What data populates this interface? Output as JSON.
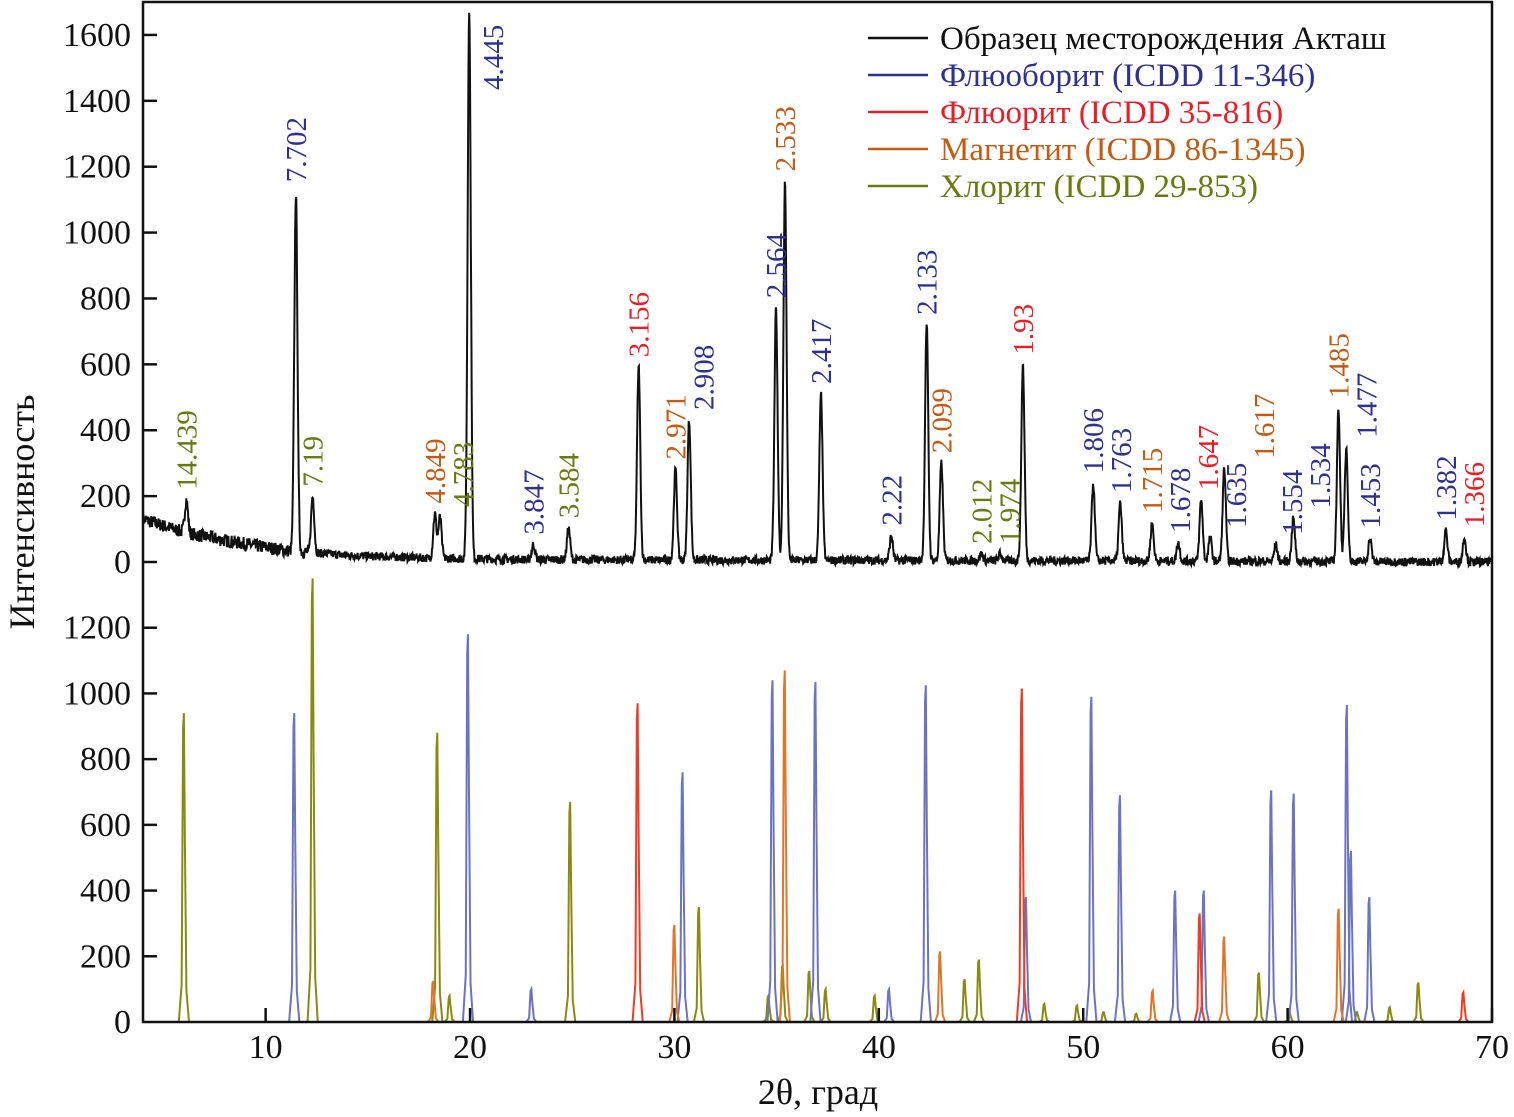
{
  "chart_data": {
    "type": "line",
    "xlabel": "2θ, град",
    "ylabel": "Интенсивность",
    "xlim": [
      4,
      70
    ],
    "xticks": [
      10,
      20,
      30,
      40,
      50,
      60,
      70
    ],
    "legend_position": "top-right",
    "legend": [
      {
        "name": "Образец месторождения Акташ",
        "color": "#111111",
        "text_color": "#111111"
      },
      {
        "name": "Флюоборит (ICDD 11-346)",
        "color": "#2e3192",
        "text_color": "#2e3192"
      },
      {
        "name": "Флюорит (ICDD 35-816)",
        "color": "#ed1c24",
        "text_color": "#ed1c24"
      },
      {
        "name": "Магнетит (ICDD 86-1345)",
        "color": "#c55a11",
        "text_color": "#c55a11"
      },
      {
        "name": "Хлорит (ICDD 29-853)",
        "color": "#6b7a0f",
        "text_color": "#6b7a0f"
      }
    ],
    "phase_colors": {
      "fluoroborite": {
        "label": "#2e3192",
        "line": "#6b74c0"
      },
      "fluorite": {
        "label": "#ed1c24",
        "line": "#f03c24"
      },
      "magnetite": {
        "label": "#c55a11",
        "line": "#e0762a"
      },
      "chlorite": {
        "label": "#6b7a0f",
        "line": "#8a8a10"
      }
    },
    "observed": {
      "name": "Образец месторождения Акташ",
      "ylim": [
        0,
        1700
      ],
      "yticks": [
        0,
        200,
        400,
        600,
        800,
        1000,
        1200,
        1400,
        1600
      ],
      "background": [
        [
          4,
          130
        ],
        [
          5,
          110
        ],
        [
          6,
          90
        ],
        [
          8,
          65
        ],
        [
          10,
          45
        ],
        [
          11,
          35
        ],
        [
          14,
          20
        ],
        [
          18,
          12
        ],
        [
          22,
          8
        ],
        [
          30,
          6
        ],
        [
          50,
          4
        ],
        [
          70,
          0
        ]
      ],
      "peaks": [
        {
          "d": "14.439",
          "two_theta": 6.12,
          "intensity": 100,
          "phase": "chlorite"
        },
        {
          "d": "7.702",
          "two_theta": 11.48,
          "intensity": 1090,
          "phase": "fluoroborite"
        },
        {
          "d": "7.19",
          "two_theta": 12.3,
          "intensity": 170,
          "phase": "chlorite"
        },
        {
          "d": "4.849",
          "two_theta": 18.28,
          "intensity": 135,
          "phase": "magnetite"
        },
        {
          "d": "4.783",
          "two_theta": 18.53,
          "intensity": 125,
          "phase": "chlorite"
        },
        {
          "d": "4.445",
          "two_theta": 19.96,
          "intensity": 1670,
          "phase": "fluoroborite"
        },
        {
          "d": "3.847",
          "two_theta": 23.1,
          "intensity": 45,
          "phase": "fluoroborite"
        },
        {
          "d": "3.584",
          "two_theta": 24.82,
          "intensity": 95,
          "phase": "chlorite"
        },
        {
          "d": "3.156",
          "two_theta": 28.25,
          "intensity": 585,
          "phase": "fluorite"
        },
        {
          "d": "2.971",
          "two_theta": 30.05,
          "intensity": 275,
          "phase": "magnetite"
        },
        {
          "d": "2.908",
          "two_theta": 30.72,
          "intensity": 425,
          "phase": "fluoroborite"
        },
        {
          "d": "2.564",
          "two_theta": 34.97,
          "intensity": 765,
          "phase": "fluoroborite"
        },
        {
          "d": "2.533",
          "two_theta": 35.41,
          "intensity": 1150,
          "phase": "magnetite"
        },
        {
          "d": "2.417",
          "two_theta": 37.17,
          "intensity": 505,
          "phase": "fluoroborite"
        },
        {
          "d": "2.22",
          "two_theta": 40.61,
          "intensity": 75,
          "phase": "fluoroborite"
        },
        {
          "d": "2.133",
          "two_theta": 42.34,
          "intensity": 715,
          "phase": "fluoroborite"
        },
        {
          "d": "2.099",
          "two_theta": 43.06,
          "intensity": 295,
          "phase": "magnetite"
        },
        {
          "d": "2.012",
          "two_theta": 45.02,
          "intensity": 20,
          "phase": "chlorite"
        },
        {
          "d": "1.974",
          "two_theta": 45.94,
          "intensity": 20,
          "phase": "chlorite"
        },
        {
          "d": "1.93",
          "two_theta": 47.05,
          "intensity": 595,
          "phase": "fluorite"
        },
        {
          "d": "1.806",
          "two_theta": 50.49,
          "intensity": 235,
          "phase": "fluoroborite"
        },
        {
          "d": "1.763",
          "two_theta": 51.81,
          "intensity": 175,
          "phase": "fluoroborite"
        },
        {
          "d": "1.715",
          "two_theta": 53.37,
          "intensity": 115,
          "phase": "magnetite"
        },
        {
          "d": "1.678",
          "two_theta": 54.65,
          "intensity": 55,
          "phase": "fluoroborite"
        },
        {
          "d": "1.647",
          "two_theta": 55.77,
          "intensity": 185,
          "phase": "fluorite"
        },
        {
          "d": "1.635",
          "two_theta": 56.21,
          "intensity": 70,
          "phase": "fluoroborite"
        },
        {
          "d": "1.617",
          "two_theta": 56.9,
          "intensity": 280,
          "phase": "magnetite"
        },
        {
          "d": "1.554",
          "two_theta": 59.42,
          "intensity": 50,
          "phase": "fluoroborite"
        },
        {
          "d": "1.534",
          "two_theta": 60.28,
          "intensity": 130,
          "phase": "fluoroborite"
        },
        {
          "d": "1.485",
          "two_theta": 62.49,
          "intensity": 465,
          "phase": "magnetite"
        },
        {
          "d": "1.477",
          "two_theta": 62.87,
          "intensity": 345,
          "phase": "fluoroborite"
        },
        {
          "d": "1.453",
          "two_theta": 64.03,
          "intensity": 70,
          "phase": "fluoroborite"
        },
        {
          "d": "1.382",
          "two_theta": 67.74,
          "intensity": 95,
          "phase": "fluoroborite"
        },
        {
          "d": "1.366",
          "two_theta": 68.65,
          "intensity": 75,
          "phase": "fluorite"
        }
      ]
    },
    "reference": {
      "ylim": [
        0,
        1400
      ],
      "yticks": [
        0,
        200,
        400,
        600,
        800,
        1000,
        1200
      ],
      "series": [
        {
          "phase": "chlorite",
          "lines": [
            [
              6.0,
              940
            ],
            [
              12.3,
              1350
            ],
            [
              18.4,
              880
            ],
            [
              19.0,
              80
            ],
            [
              24.9,
              670
            ],
            [
              31.2,
              350
            ],
            [
              34.6,
              80
            ],
            [
              35.3,
              175
            ],
            [
              36.6,
              155
            ],
            [
              37.4,
              100
            ],
            [
              39.8,
              80
            ],
            [
              44.2,
              130
            ],
            [
              44.9,
              190
            ],
            [
              48.1,
              55
            ],
            [
              49.7,
              50
            ],
            [
              51.0,
              30
            ],
            [
              52.6,
              25
            ],
            [
              58.6,
              150
            ],
            [
              60.1,
              30
            ],
            [
              63.4,
              30
            ],
            [
              65.0,
              45
            ],
            [
              66.4,
              120
            ]
          ]
        },
        {
          "phase": "fluoroborite",
          "lines": [
            [
              11.4,
              940
            ],
            [
              19.9,
              1180
            ],
            [
              23.0,
              100
            ],
            [
              30.4,
              760
            ],
            [
              34.8,
              1040
            ],
            [
              36.9,
              1035
            ],
            [
              40.5,
              100
            ],
            [
              42.3,
              1025
            ],
            [
              47.2,
              380
            ],
            [
              50.4,
              990
            ],
            [
              51.8,
              690
            ],
            [
              54.5,
              400
            ],
            [
              55.9,
              400
            ],
            [
              59.2,
              705
            ],
            [
              60.3,
              695
            ],
            [
              62.9,
              965
            ],
            [
              63.1,
              520
            ],
            [
              64.0,
              380
            ]
          ]
        },
        {
          "phase": "fluorite",
          "lines": [
            [
              28.2,
              970
            ],
            [
              47.0,
              1015
            ],
            [
              55.7,
              330
            ],
            [
              68.6,
              90
            ]
          ]
        },
        {
          "phase": "magnetite",
          "lines": [
            [
              18.2,
              125
            ],
            [
              30.0,
              295
            ],
            [
              35.4,
              1070
            ],
            [
              43.0,
              215
            ],
            [
              53.4,
              95
            ],
            [
              56.9,
              260
            ],
            [
              62.5,
              345
            ]
          ]
        }
      ]
    }
  }
}
